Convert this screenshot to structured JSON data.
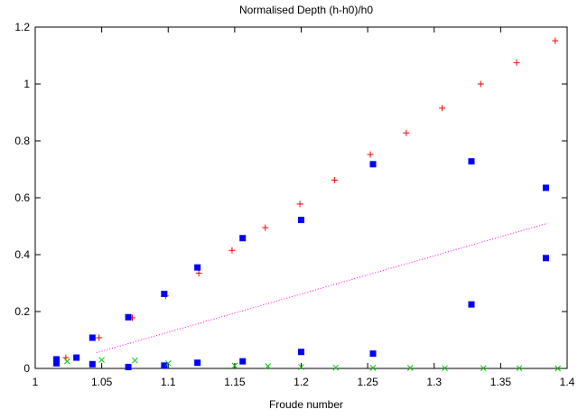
{
  "chart_data": {
    "type": "scatter",
    "title": "Normalised Depth (h-h0)/h0",
    "xlabel": "Froude number",
    "ylabel": "",
    "xlim": [
      1,
      1.4
    ],
    "ylim": [
      0,
      1.2
    ],
    "xticks": [
      1,
      1.05,
      1.1,
      1.15,
      1.2,
      1.25,
      1.3,
      1.35,
      1.4
    ],
    "xtick_labels": [
      "1",
      "1.05",
      "1.1",
      "1.15",
      "1.2",
      "1.25",
      "1.3",
      "1.35",
      "1.4"
    ],
    "yticks": [
      0,
      0.2,
      0.4,
      0.6,
      0.8,
      1,
      1.2
    ],
    "ytick_labels": [
      "0",
      "0.2",
      "0.4",
      "0.6",
      "0.8",
      "1",
      "1.2"
    ],
    "grid": false,
    "legend": "none",
    "series": [
      {
        "marker": "plus",
        "color": "#ff0000",
        "points": [
          [
            1.023,
            0.038
          ],
          [
            1.048,
            0.108
          ],
          [
            1.073,
            0.178
          ],
          [
            1.098,
            0.255
          ],
          [
            1.123,
            0.335
          ],
          [
            1.148,
            0.415
          ],
          [
            1.173,
            0.495
          ],
          [
            1.199,
            0.578
          ],
          [
            1.225,
            0.662
          ],
          [
            1.252,
            0.752
          ],
          [
            1.279,
            0.828
          ],
          [
            1.306,
            0.915
          ],
          [
            1.335,
            1.0
          ],
          [
            1.362,
            1.075
          ],
          [
            1.391,
            1.152
          ]
        ]
      },
      {
        "marker": "square",
        "color": "#0000ff",
        "points": [
          [
            1.016,
            0.032
          ],
          [
            1.016,
            0.018
          ],
          [
            1.031,
            0.038
          ],
          [
            1.043,
            0.108
          ],
          [
            1.043,
            0.015
          ],
          [
            1.07,
            0.18
          ],
          [
            1.07,
            0.005
          ],
          [
            1.097,
            0.262
          ],
          [
            1.097,
            0.01
          ],
          [
            1.122,
            0.355
          ],
          [
            1.122,
            0.02
          ],
          [
            1.156,
            0.458
          ],
          [
            1.156,
            0.025
          ],
          [
            1.2,
            0.522
          ],
          [
            1.2,
            0.058
          ],
          [
            1.254,
            0.718
          ],
          [
            1.254,
            0.052
          ],
          [
            1.328,
            0.728
          ],
          [
            1.328,
            0.225
          ],
          [
            1.384,
            0.635
          ],
          [
            1.384,
            0.388
          ]
        ]
      },
      {
        "marker": "cross",
        "color": "#00c000",
        "points": [
          [
            1.024,
            0.025
          ],
          [
            1.05,
            0.03
          ],
          [
            1.075,
            0.028
          ],
          [
            1.1,
            0.018
          ],
          [
            1.15,
            0.01
          ],
          [
            1.175,
            0.008
          ],
          [
            1.2,
            0.005
          ],
          [
            1.226,
            0.003
          ],
          [
            1.254,
            0.002
          ],
          [
            1.282,
            0.002
          ],
          [
            1.308,
            0.001
          ],
          [
            1.337,
            0.001
          ],
          [
            1.364,
            0.001
          ],
          [
            1.393,
            0.0
          ]
        ]
      }
    ],
    "lines": [
      {
        "style": "dotted",
        "color": "#ff00ff",
        "x": [
          1.046,
          1.385
        ],
        "y": [
          0.055,
          0.51
        ]
      }
    ]
  }
}
